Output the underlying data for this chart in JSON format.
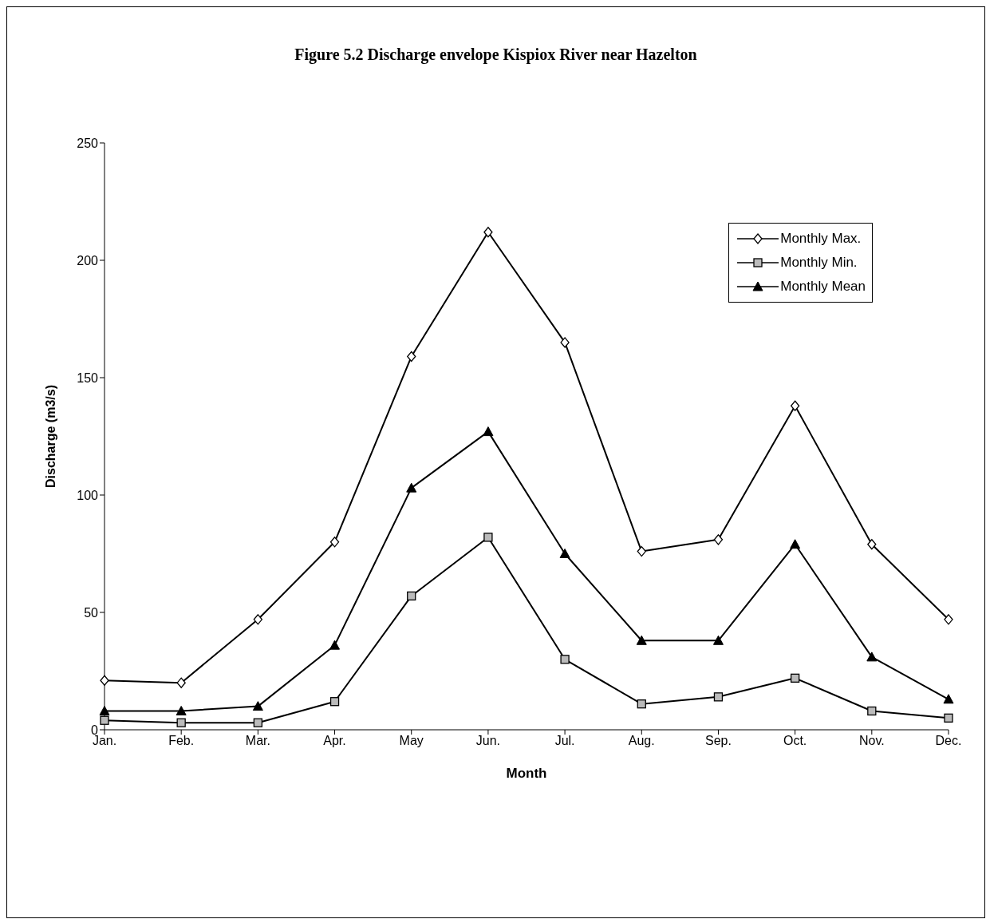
{
  "chart_data": {
    "type": "line",
    "title": "Figure 5.2  Discharge envelope Kispiox River near Hazelton",
    "xlabel": "Month",
    "ylabel": "Discharge (m3/s)",
    "categories": [
      "Jan.",
      "Feb.",
      "Mar.",
      "Apr.",
      "May",
      "Jun.",
      "Jul.",
      "Aug.",
      "Sep.",
      "Oct.",
      "Nov.",
      "Dec."
    ],
    "series": [
      {
        "name": "Monthly Max.",
        "color": "#000000",
        "marker": "diamond",
        "values": [
          21,
          20,
          47,
          80,
          159,
          212,
          165,
          76,
          81,
          138,
          79,
          47
        ]
      },
      {
        "name": "Monthly Min.",
        "color": "#000000",
        "marker": "square",
        "values": [
          4,
          3,
          3,
          12,
          57,
          82,
          30,
          11,
          14,
          22,
          8,
          5
        ]
      },
      {
        "name": "Monthly Mean",
        "color": "#000000",
        "marker": "triangle",
        "values": [
          8,
          8,
          10,
          36,
          103,
          127,
          75,
          38,
          38,
          79,
          31,
          13
        ]
      }
    ],
    "ylim": [
      0,
      250
    ],
    "yticks": [
      0,
      50,
      100,
      150,
      200,
      250
    ],
    "grid": false,
    "legend": "top right",
    "line_style": "solid"
  }
}
